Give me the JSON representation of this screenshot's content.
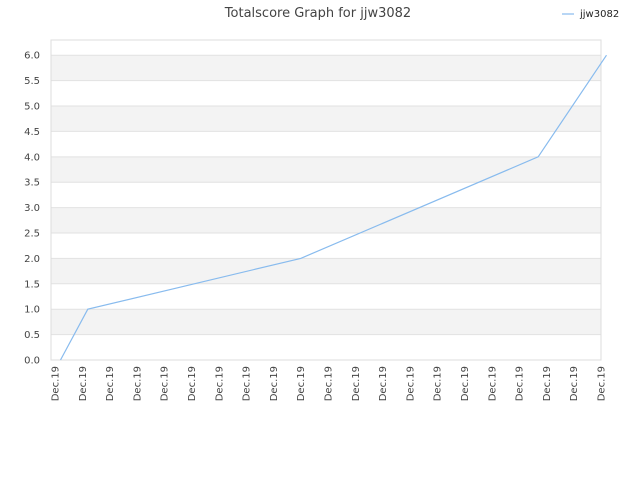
{
  "chart_data": {
    "type": "line",
    "title": "Totalscore Graph for jjw3082",
    "legend_position": "top-right",
    "grid": true,
    "ylim": [
      0,
      6.3
    ],
    "y_ticks": [
      "0.0",
      "0.5",
      "1.0",
      "1.5",
      "2.0",
      "2.5",
      "3.0",
      "3.5",
      "4.0",
      "4.5",
      "5.0",
      "5.5",
      "6.0"
    ],
    "x_ticks": [
      "Dec.19",
      "Dec.19",
      "Dec.19",
      "Dec.19",
      "Dec.19",
      "Dec.19",
      "Dec.19",
      "Dec.19",
      "Dec.19",
      "Dec.19",
      "Dec.19",
      "Dec.19",
      "Dec.19",
      "Dec.19",
      "Dec.19",
      "Dec.19",
      "Dec.19",
      "Dec.19",
      "Dec.19",
      "Dec.19",
      "Dec.19"
    ],
    "series": [
      {
        "name": "jjw3082",
        "color": "#88bbee",
        "points": [
          {
            "x": 0.2,
            "y": 0
          },
          {
            "x": 1.2,
            "y": 1
          },
          {
            "x": 9.0,
            "y": 2
          },
          {
            "x": 17.7,
            "y": 4
          },
          {
            "x": 20.2,
            "y": 6
          }
        ]
      }
    ]
  }
}
